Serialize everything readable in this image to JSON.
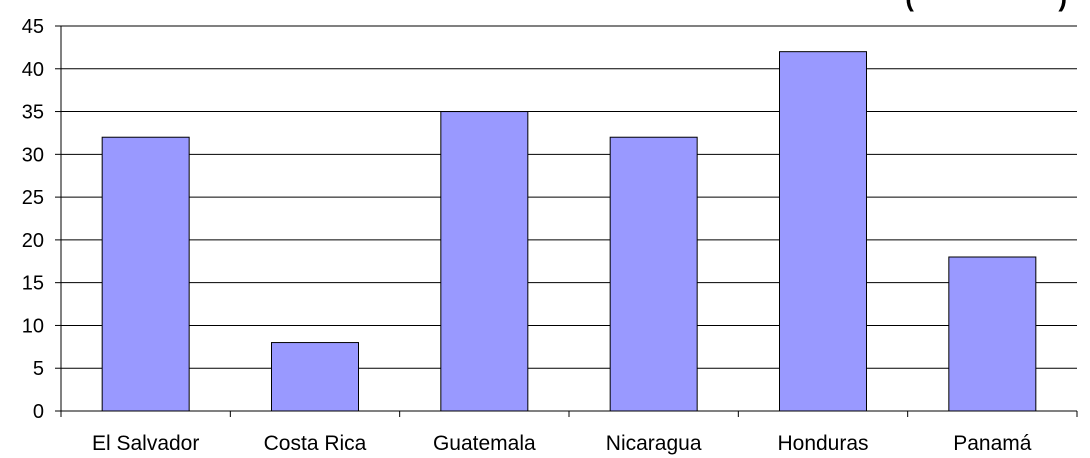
{
  "chart_data": {
    "type": "bar",
    "title_visible_fragment": "(                    )",
    "categories": [
      "El Salvador",
      "Costa Rica",
      "Guatemala",
      "Nicaragua",
      "Honduras",
      "Panamá"
    ],
    "values": [
      32,
      8,
      35,
      32,
      42,
      18
    ],
    "ylim": [
      0,
      45
    ],
    "yticks": [
      "0",
      "5",
      "10",
      "15",
      "20",
      "25",
      "30",
      "35",
      "40",
      "45"
    ],
    "grid": true,
    "legend": "none",
    "colors": {
      "bar_fill": "#9999FF",
      "bar_stroke": "#000000",
      "grid": "#000000"
    }
  }
}
